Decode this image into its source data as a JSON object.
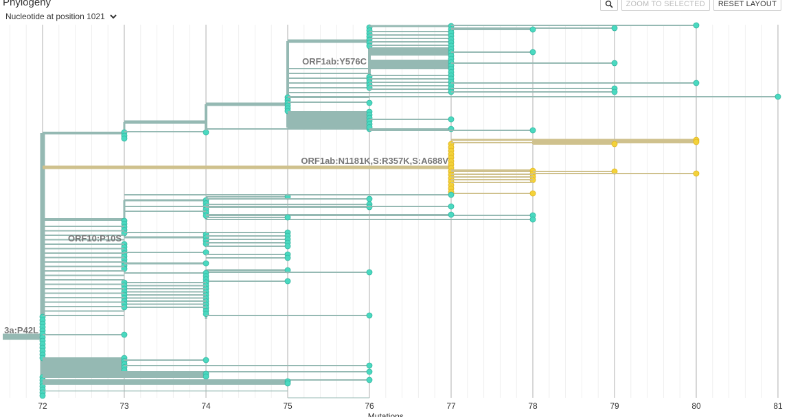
{
  "panel": {
    "title": "Phylogeny",
    "color_by_label": "Nucleotide at position 1021"
  },
  "toolbar": {
    "zoom_icon": "magnifier-icon",
    "zoom_selected_label": "ZOOM TO SELECTED",
    "reset_layout_label": "RESET LAYOUT"
  },
  "colors": {
    "teal_branch": "#95b9b3",
    "teal_tip": "#4ad9c0",
    "yellow_branch": "#cfc18d",
    "yellow_tip": "#f3d23a",
    "grid_major": "#d7d7d7",
    "grid_minor": "#eeeeee"
  },
  "chart_data": {
    "type": "phylogenetic-tree",
    "xlabel": "Mutations",
    "xlim": [
      71,
      81
    ],
    "x_ticks": [
      72,
      73,
      74,
      75,
      76,
      77,
      78,
      79,
      80,
      81
    ],
    "grid": true,
    "branch_labels": [
      {
        "text": "ORF1ab:Y576C",
        "x": 76
      },
      {
        "text": "ORF1ab:N1181K,S:R357K,S:A688V",
        "x": 77
      },
      {
        "text": "ORF10:P10S",
        "x": 73
      },
      {
        "text": "3a:P42L",
        "x": 72
      }
    ],
    "clades": [
      {
        "name": "teal",
        "tips_at_mutations": [
          72,
          73,
          74,
          75,
          76,
          77,
          78,
          79,
          80,
          81
        ]
      },
      {
        "name": "yellow",
        "tips_at_mutations": [
          77,
          78,
          79,
          80
        ]
      }
    ]
  }
}
